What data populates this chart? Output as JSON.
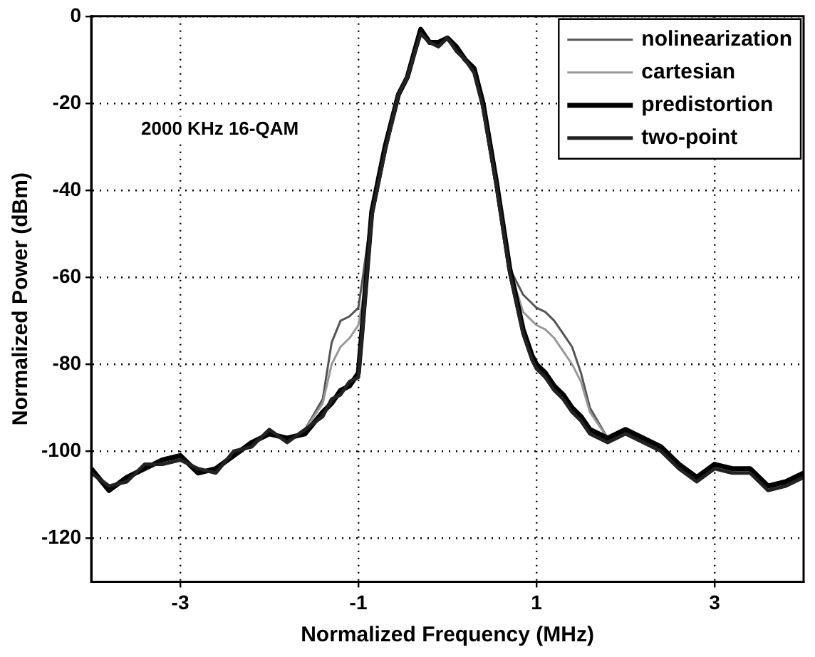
{
  "chart_data": {
    "type": "line",
    "xlabel": "Normalized Frequency (MHz)",
    "ylabel": "Normalized Power (dBm)",
    "annotations": [
      "2000 KHz 16-QAM"
    ],
    "x": [
      -4,
      -3.8,
      -3.6,
      -3.4,
      -3.2,
      -3,
      -2.8,
      -2.6,
      -2.4,
      -2.2,
      -2,
      -1.8,
      -1.6,
      -1.4,
      -1.3,
      -1.2,
      -1.1,
      -1,
      -0.95,
      -0.85,
      -0.7,
      -0.55,
      -0.45,
      -0.3,
      -0.2,
      -0.1,
      0,
      0.1,
      0.2,
      0.3,
      0.4,
      0.55,
      0.7,
      0.85,
      0.95,
      1,
      1.1,
      1.2,
      1.3,
      1.4,
      1.5,
      1.6,
      1.8,
      2,
      2.2,
      2.4,
      2.6,
      2.8,
      3,
      3.2,
      3.4,
      3.6,
      3.8,
      4
    ],
    "series": [
      {
        "name": "nolinearization",
        "color": "#555555",
        "values": [
          null,
          null,
          null,
          null,
          null,
          null,
          null,
          null,
          null,
          null,
          null,
          null,
          -95,
          -88,
          -75,
          -70,
          -69,
          -67,
          -60,
          -45,
          null,
          null,
          null,
          null,
          null,
          null,
          null,
          null,
          null,
          null,
          null,
          null,
          -58,
          -64,
          -66,
          -67,
          -68,
          -70,
          -73,
          -76,
          -82,
          -90,
          -97,
          null,
          null,
          null,
          null,
          null,
          null,
          null,
          null,
          null,
          null,
          null
        ]
      },
      {
        "name": "cartesian",
        "color": "#999999",
        "values": [
          null,
          null,
          null,
          null,
          null,
          null,
          null,
          null,
          null,
          null,
          null,
          null,
          -95,
          -89,
          -80,
          -76,
          -74,
          -71,
          -65,
          -45,
          null,
          null,
          null,
          null,
          null,
          null,
          null,
          null,
          null,
          null,
          null,
          null,
          -58,
          -68,
          -70,
          -71,
          -72,
          -74,
          -77,
          -80,
          -84,
          -91,
          -97,
          null,
          null,
          null,
          null,
          null,
          null,
          null,
          null,
          null,
          null,
          null
        ]
      },
      {
        "name": "predistortion",
        "color": "#000000",
        "values": [
          -104,
          -109,
          -106,
          -104,
          -102,
          -101,
          -105,
          -104,
          -101,
          -98,
          -96,
          -97,
          -96,
          -91,
          -89,
          -86,
          -85,
          -82,
          -70,
          -45,
          -30,
          -18,
          -14,
          -3,
          -6,
          -6,
          -5,
          -7,
          -10,
          -12,
          -20,
          -38,
          -58,
          -72,
          -78,
          -80,
          -82,
          -85,
          -87,
          -90,
          -92,
          -95,
          -97,
          -95,
          -97,
          -99,
          -103,
          -106,
          -103,
          -104,
          -104,
          -108,
          -107,
          -105
        ]
      },
      {
        "name": "two-point",
        "color": "#222222",
        "values": [
          -105,
          -108,
          -107,
          -103,
          -103,
          -102,
          -104,
          -105,
          -100,
          -99,
          -95,
          -98,
          -95,
          -92,
          -88,
          -87,
          -84,
          -83,
          -71,
          -46,
          -31,
          -18,
          -14,
          -4,
          -6,
          -7,
          -5,
          -8,
          -10,
          -13,
          -21,
          -39,
          -59,
          -73,
          -79,
          -81,
          -83,
          -86,
          -88,
          -91,
          -93,
          -96,
          -98,
          -96,
          -98,
          -100,
          -104,
          -107,
          -104,
          -105,
          -105,
          -109,
          -108,
          -106
        ]
      }
    ],
    "xlim": [
      -4,
      4
    ],
    "xticks": [
      -3,
      -1,
      1,
      3
    ],
    "ylim": [
      -130,
      0
    ],
    "yticks": [
      -120,
      -100,
      -80,
      -60,
      -40,
      -20,
      0
    ],
    "grid": true,
    "legend": "top right",
    "line_style": "solid",
    "marker": "none"
  }
}
